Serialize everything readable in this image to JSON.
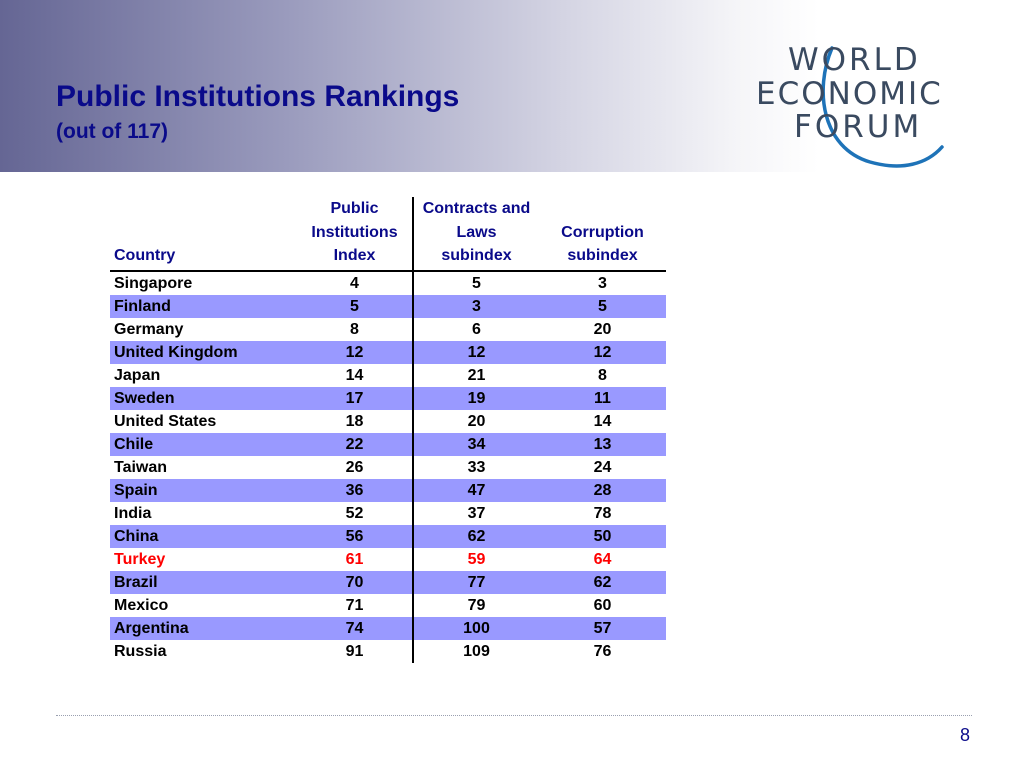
{
  "slide": {
    "title": "Public Institutions Rankings",
    "subtitle": "(out of 117)",
    "page_number": "8"
  },
  "logo": {
    "line1": "WORLD",
    "line2": "ECONOMIC",
    "line3": "FORUM",
    "color": "#3a4a60",
    "arc_color": "#1e73b8"
  },
  "table": {
    "headers": {
      "country": "Country",
      "public_institutions": [
        "Public",
        "Institutions",
        "Index"
      ],
      "contracts_laws": [
        "Contracts and",
        "Laws",
        "subindex"
      ],
      "corruption": [
        "Corruption",
        "subindex"
      ]
    },
    "rows": [
      {
        "country": "Singapore",
        "pii": "4",
        "contracts": "5",
        "corruption": "3"
      },
      {
        "country": "Finland",
        "pii": "5",
        "contracts": "3",
        "corruption": "5"
      },
      {
        "country": "Germany",
        "pii": "8",
        "contracts": "6",
        "corruption": "20"
      },
      {
        "country": "United Kingdom",
        "pii": "12",
        "contracts": "12",
        "corruption": "12"
      },
      {
        "country": "Japan",
        "pii": "14",
        "contracts": "21",
        "corruption": "8"
      },
      {
        "country": "Sweden",
        "pii": "17",
        "contracts": "19",
        "corruption": "11"
      },
      {
        "country": "United States",
        "pii": "18",
        "contracts": "20",
        "corruption": "14"
      },
      {
        "country": "Chile",
        "pii": "22",
        "contracts": "34",
        "corruption": "13"
      },
      {
        "country": "Taiwan",
        "pii": "26",
        "contracts": "33",
        "corruption": "24"
      },
      {
        "country": "Spain",
        "pii": "36",
        "contracts": "47",
        "corruption": "28"
      },
      {
        "country": "India",
        "pii": "52",
        "contracts": "37",
        "corruption": "78"
      },
      {
        "country": "China",
        "pii": "56",
        "contracts": "62",
        "corruption": "50"
      },
      {
        "country": "Turkey",
        "pii": "61",
        "contracts": "59",
        "corruption": "64"
      },
      {
        "country": "Brazil",
        "pii": "70",
        "contracts": "77",
        "corruption": "62"
      },
      {
        "country": "Mexico",
        "pii": "71",
        "contracts": "79",
        "corruption": "60"
      },
      {
        "country": "Argentina",
        "pii": "74",
        "contracts": "100",
        "corruption": "57"
      },
      {
        "country": "Russia",
        "pii": "91",
        "contracts": "109",
        "corruption": "76"
      }
    ],
    "shaded_row_color": "#9999ff",
    "highlight_color": "#ff0000",
    "header_color": "#0a0a8a"
  }
}
